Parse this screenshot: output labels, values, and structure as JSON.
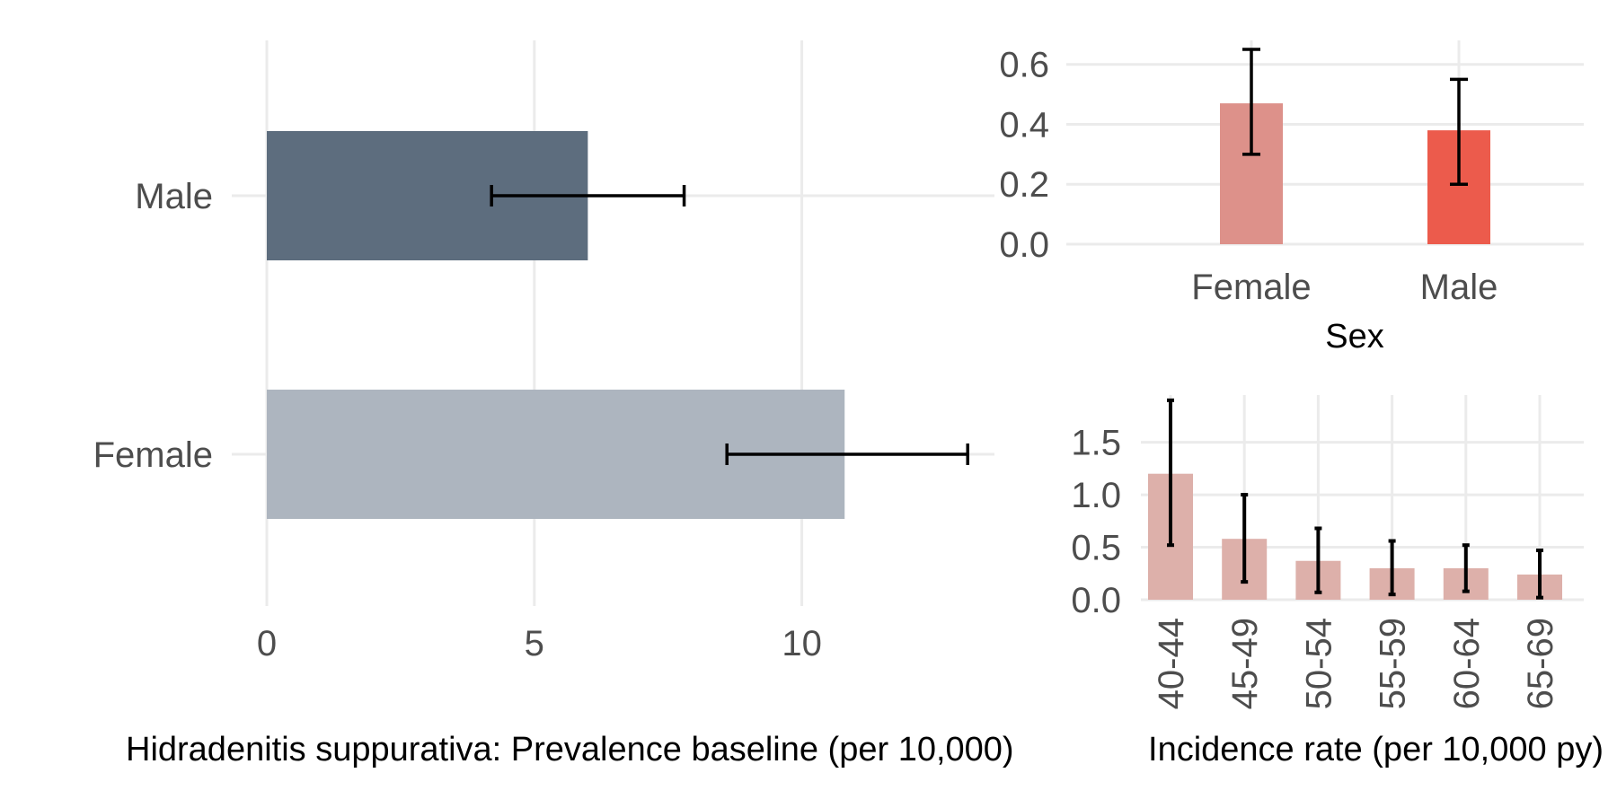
{
  "chart_data": [
    {
      "type": "bar",
      "orientation": "horizontal",
      "categories": [
        "Male",
        "Female"
      ],
      "values": [
        6.0,
        10.8
      ],
      "error_low": [
        4.2,
        8.6
      ],
      "error_high": [
        7.8,
        13.1
      ],
      "xlabel": "Hidradenitis suppurativa: Prevalence baseline (per 10,000)",
      "ylabel": "",
      "xlim": [
        0,
        13.6
      ],
      "xticks": [
        0,
        5,
        10
      ],
      "xtick_labels": [
        "0",
        "5",
        "10"
      ],
      "colors": [
        "#5d6d7e",
        "#adb5bf"
      ],
      "grid": true
    },
    {
      "type": "bar",
      "categories": [
        "Female",
        "Male"
      ],
      "values": [
        0.47,
        0.38
      ],
      "error_low": [
        0.3,
        0.2
      ],
      "error_high": [
        0.65,
        0.55
      ],
      "xlabel": "Sex",
      "ylabel": "",
      "ylim": [
        0,
        0.68
      ],
      "yticks": [
        0,
        0.2,
        0.4,
        0.6
      ],
      "ytick_labels": [
        "0.0",
        "0.2",
        "0.4",
        "0.6"
      ],
      "colors": [
        "#dd918a",
        "#ec5b4c"
      ],
      "grid": true
    },
    {
      "type": "bar",
      "categories": [
        "40-44",
        "45-49",
        "50-54",
        "55-59",
        "60-64",
        "65-69"
      ],
      "values": [
        1.2,
        0.58,
        0.37,
        0.3,
        0.3,
        0.24
      ],
      "error_low": [
        0.52,
        0.17,
        0.07,
        0.05,
        0.08,
        0.02
      ],
      "error_high": [
        1.9,
        1.0,
        0.68,
        0.56,
        0.52,
        0.47
      ],
      "xlabel": "Incidence rate (per 10,000 py)",
      "ylabel": "",
      "ylim": [
        0,
        1.95
      ],
      "yticks": [
        0,
        0.5,
        1.0,
        1.5
      ],
      "ytick_labels": [
        "0.0",
        "0.5",
        "1.0",
        "1.5"
      ],
      "colors": [
        "#ddb0aa"
      ],
      "grid": true
    }
  ]
}
